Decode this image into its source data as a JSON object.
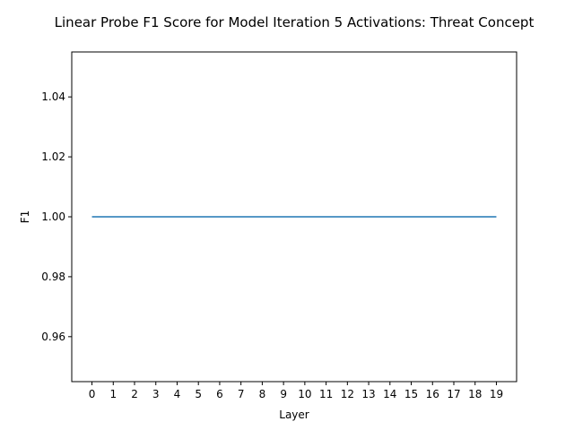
{
  "chart_data": {
    "type": "line",
    "title": "Linear Probe F1 Score for Model Iteration 5 Activations: Threat Concept",
    "xlabel": "Layer",
    "ylabel": "F1",
    "x": [
      0,
      1,
      2,
      3,
      4,
      5,
      6,
      7,
      8,
      9,
      10,
      11,
      12,
      13,
      14,
      15,
      16,
      17,
      18,
      19
    ],
    "series": [
      {
        "values": [
          1.0,
          1.0,
          1.0,
          1.0,
          1.0,
          1.0,
          1.0,
          1.0,
          1.0,
          1.0,
          1.0,
          1.0,
          1.0,
          1.0,
          1.0,
          1.0,
          1.0,
          1.0,
          1.0,
          1.0
        ],
        "color": "#1f77b4"
      }
    ],
    "xticks": [
      "0",
      "1",
      "2",
      "3",
      "4",
      "5",
      "6",
      "7",
      "8",
      "9",
      "10",
      "11",
      "12",
      "13",
      "14",
      "15",
      "16",
      "17",
      "18",
      "19"
    ],
    "yticks": [
      "0.96",
      "0.98",
      "1.00",
      "1.02",
      "1.04"
    ],
    "ytick_values": [
      0.96,
      0.98,
      1.0,
      1.02,
      1.04
    ],
    "xlim": [
      -0.95,
      19.95
    ],
    "ylim": [
      0.945,
      1.055
    ],
    "grid": false,
    "legend": "none"
  }
}
